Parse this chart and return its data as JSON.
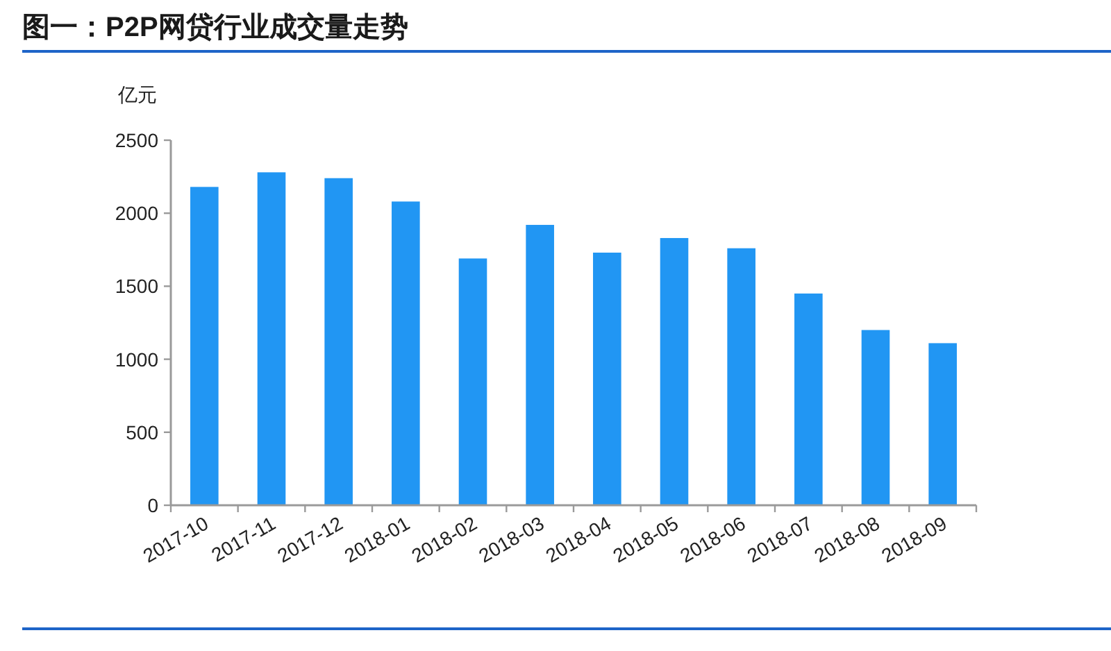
{
  "chart_data": {
    "type": "bar",
    "title": "图一：P2P网贷行业成交量走势",
    "ylabel": "亿元",
    "categories": [
      "2017-10",
      "2017-11",
      "2017-12",
      "2018-01",
      "2018-02",
      "2018-03",
      "2018-04",
      "2018-05",
      "2018-06",
      "2018-07",
      "2018-08",
      "2018-09"
    ],
    "values": [
      2180,
      2280,
      2240,
      2080,
      1690,
      1920,
      1730,
      1830,
      1760,
      1450,
      1200,
      1110
    ],
    "color": "#2196f3",
    "ylim": [
      0,
      2500
    ],
    "yticks": [
      0,
      500,
      1000,
      1500,
      2000,
      2500
    ]
  }
}
